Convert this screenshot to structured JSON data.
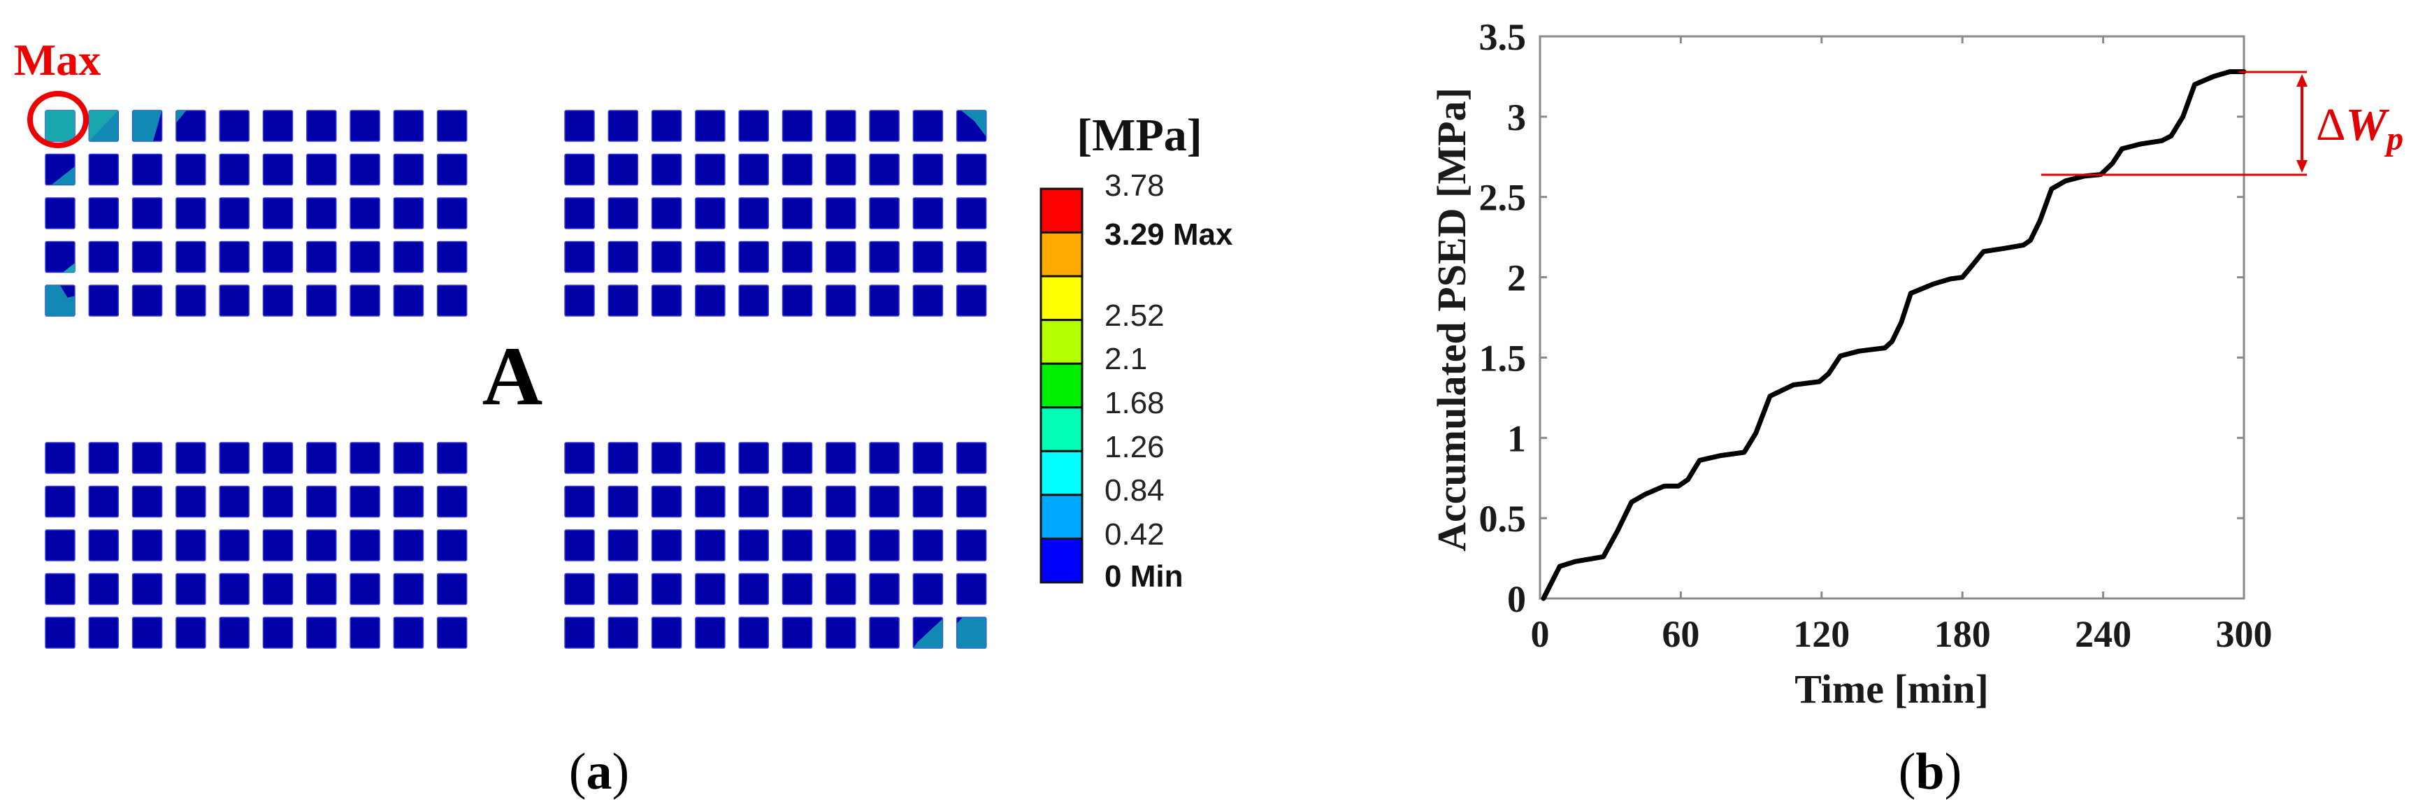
{
  "panels": {
    "a": {
      "caption": "(a)",
      "max_marker_label": "Max",
      "group_label": "A",
      "grid": {
        "groups": [
          "top-left",
          "top-right",
          "bottom-left",
          "bottom-right"
        ],
        "rows": 5,
        "cols": 10,
        "base_color": "#0000a8"
      },
      "colorbar": {
        "unit": "[MPa]",
        "bands": [
          {
            "color": "#ff0000"
          },
          {
            "color": "#ffaa00"
          },
          {
            "color": "#ffff00"
          },
          {
            "color": "#b4ff00"
          },
          {
            "color": "#00ee00"
          },
          {
            "color": "#00ffb4"
          },
          {
            "color": "#00ffff"
          },
          {
            "color": "#00aaff"
          },
          {
            "color": "#0000ff"
          }
        ],
        "labels": [
          {
            "text": "3.78",
            "strong": false
          },
          {
            "text": "3.29 Max",
            "strong": true
          },
          {
            "text": "2.52",
            "strong": false
          },
          {
            "text": "2.1",
            "strong": false
          },
          {
            "text": "1.68",
            "strong": false
          },
          {
            "text": "1.26",
            "strong": false
          },
          {
            "text": "0.84",
            "strong": false
          },
          {
            "text": "0.42",
            "strong": false
          },
          {
            "text": "0 Min",
            "strong": true
          }
        ]
      }
    },
    "b": {
      "caption": "(b)",
      "annotation": {
        "delta": "Δ",
        "symbol": "W",
        "subscript": "p",
        "color": "#ff0000"
      }
    }
  },
  "chart_data": {
    "type": "line",
    "title": "",
    "xlabel": "Time [min]",
    "ylabel": "Accumulated PSED [MPa]",
    "xlim": [
      0,
      300
    ],
    "ylim": [
      0,
      3.5
    ],
    "xticks": [
      0,
      60,
      120,
      180,
      240,
      300
    ],
    "xtick_labels": [
      "0",
      "60",
      "120",
      "180",
      "240",
      "300"
    ],
    "yticks": [
      0,
      0.5,
      1,
      1.5,
      2,
      2.5,
      3,
      3.5
    ],
    "ytick_labels": [
      "0",
      "0.5",
      "1",
      "1.5",
      "2",
      "2.5",
      "3",
      "3.5"
    ],
    "grid": false,
    "legend": null,
    "series": [
      {
        "name": "Accumulated PSED",
        "color": "#000000",
        "x": [
          1.5,
          8.4,
          15,
          27,
          33,
          39,
          45,
          53,
          59,
          63,
          68,
          77,
          87,
          92,
          98,
          108,
          119,
          123,
          128,
          136,
          147,
          150,
          154,
          158,
          168,
          175,
          180,
          184,
          189,
          198,
          206,
          209,
          213,
          218,
          224,
          232,
          239,
          244,
          248,
          256,
          265,
          269,
          274,
          279,
          287,
          294,
          300
        ],
        "y": [
          0,
          0.2,
          0.23,
          0.26,
          0.42,
          0.6,
          0.65,
          0.7,
          0.7,
          0.74,
          0.86,
          0.89,
          0.91,
          1.03,
          1.26,
          1.33,
          1.35,
          1.4,
          1.51,
          1.54,
          1.56,
          1.6,
          1.72,
          1.9,
          1.96,
          1.99,
          2.0,
          2.07,
          2.16,
          2.18,
          2.2,
          2.23,
          2.35,
          2.55,
          2.6,
          2.63,
          2.64,
          2.71,
          2.8,
          2.83,
          2.85,
          2.88,
          3.0,
          3.2,
          3.25,
          3.28,
          3.28
        ]
      }
    ],
    "annotations": [
      {
        "type": "bracket-arrow",
        "label": "ΔW_p",
        "y_from": 2.64,
        "y_to": 3.28,
        "color": "#ff0000"
      }
    ]
  }
}
